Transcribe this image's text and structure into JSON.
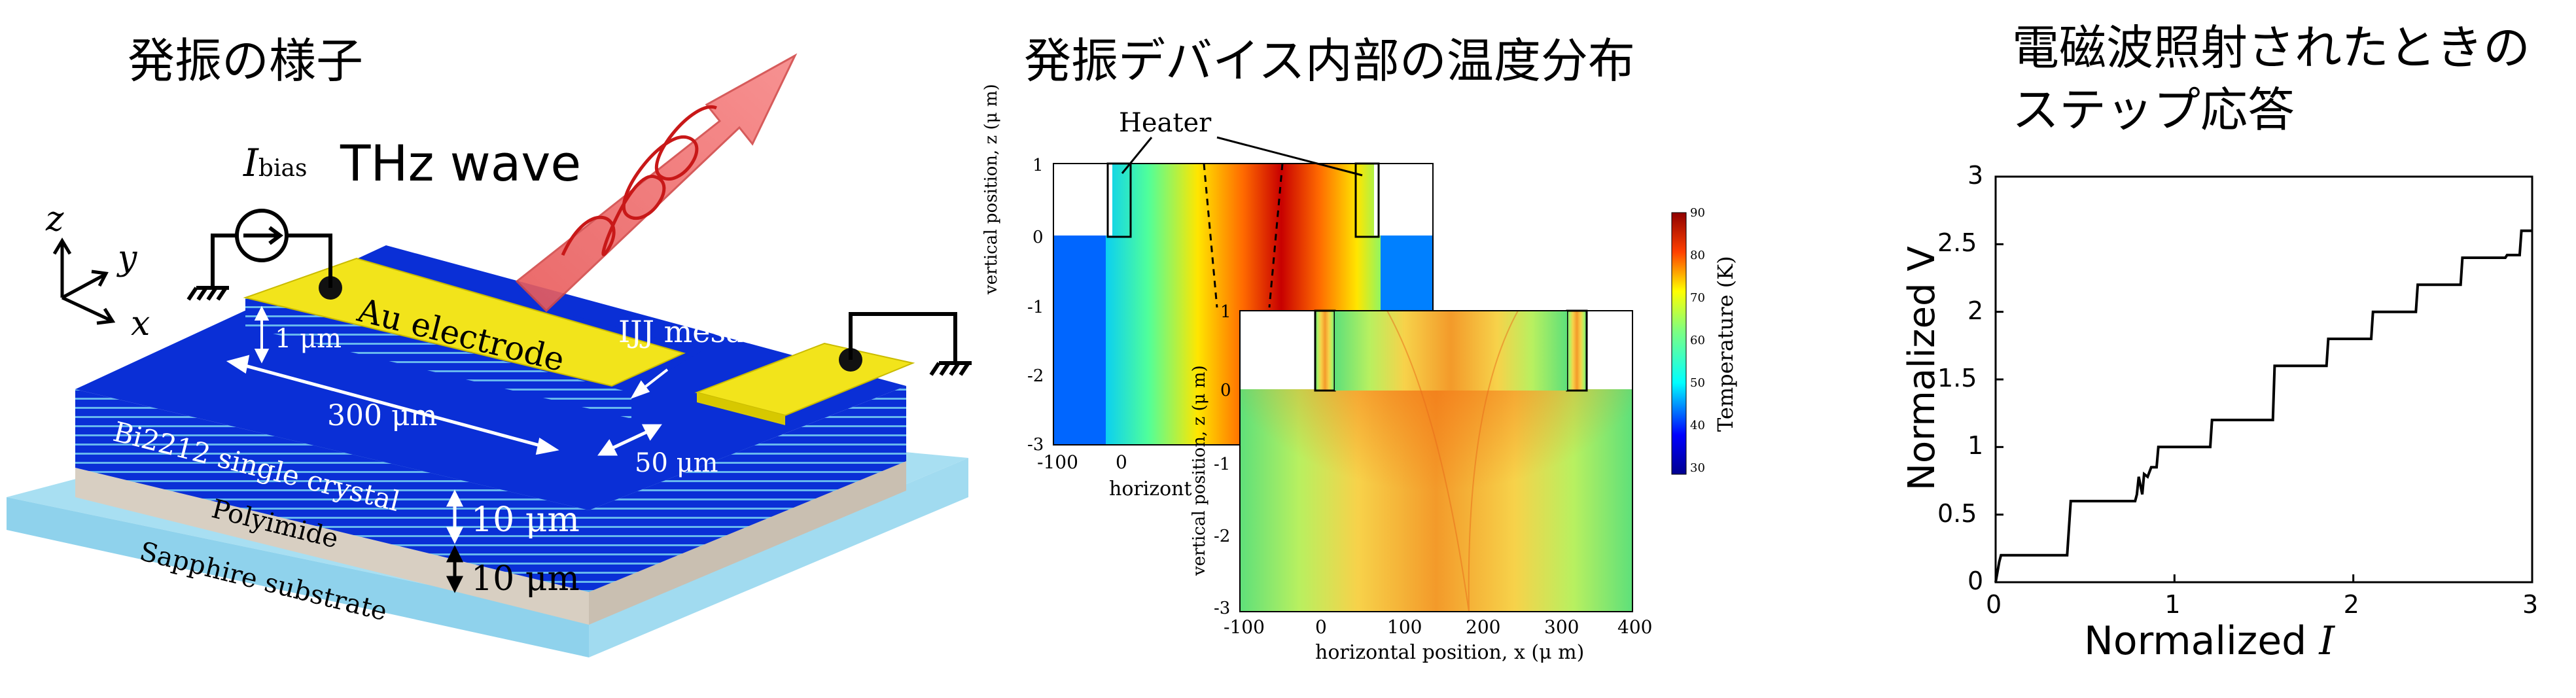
{
  "panel1": {
    "title": "発振の様子",
    "labels": {
      "ibias_main": "I",
      "ibias_sub": "bias",
      "thz": "THz wave",
      "axis_z": "z",
      "axis_y": "y",
      "axis_x": "x",
      "au_electrode": "Au electrode",
      "ijj_mesa": "IJJ mesa",
      "thickness_1um": "1 μm",
      "length_300um": "300 μm",
      "width_50um": "50 μm",
      "bi2212": "Bi2212 single crystal",
      "polyimide": "Polyimide",
      "sapphire": "Sapphire substrate",
      "thick_10um_a": "10 μm",
      "thick_10um_b": "10 μm"
    },
    "colors": {
      "mesa_blue": "#0a2fd6",
      "electrode_yellow": "#f2e41b",
      "substrate": "#a8dff2",
      "polyimide": "#d8cfc2",
      "thz_arrow": "#f07070"
    }
  },
  "panel2": {
    "title": "発振デバイス内部の温度分布",
    "heater_label": "Heater",
    "colorbar": {
      "label": "Temperature (K)",
      "ticks": [
        "90",
        "80",
        "70",
        "60",
        "50",
        "40",
        "30"
      ]
    },
    "back_plot": {
      "ylabel": "vertical position,  z (μ m)",
      "xlabel": "horizont",
      "x_ticks": [
        "-100",
        "0"
      ],
      "y_ticks": [
        "1",
        "0",
        "-1",
        "-2",
        "-3"
      ]
    },
    "front_plot": {
      "ylabel": "vertical position,  z (μ m)",
      "xlabel": "horizontal position,  x (μ m)",
      "x_ticks": [
        "-100",
        "0",
        "100",
        "200",
        "300",
        "400"
      ],
      "y_ticks": [
        "1",
        "0",
        "-1",
        "-2",
        "-3"
      ]
    }
  },
  "panel3": {
    "title_line1": "電磁波照射されたときの",
    "title_line2": "ステップ応答",
    "chart_data": {
      "type": "line",
      "xlabel": "Normalized I",
      "ylabel": "Normalized V",
      "xlim": [
        0,
        3
      ],
      "ylim": [
        0,
        3
      ],
      "x_ticks": [
        "0",
        "1",
        "2",
        "3"
      ],
      "y_ticks": [
        "0",
        "0.5",
        "1",
        "1.5",
        "2",
        "2.5",
        "3"
      ],
      "series": [
        {
          "x": [
            0,
            0.02,
            0.03,
            0.4,
            0.42,
            0.78,
            0.79,
            0.8,
            0.82,
            0.83,
            0.85,
            0.87,
            0.9,
            0.91,
            1.2,
            1.21,
            1.55,
            1.56,
            1.85,
            1.86,
            2.1,
            2.11,
            2.35,
            2.36,
            2.6,
            2.61,
            2.85,
            2.86,
            2.93,
            2.94,
            3.0
          ],
          "y": [
            0,
            0.15,
            0.2,
            0.2,
            0.6,
            0.6,
            0.65,
            0.78,
            0.65,
            0.8,
            0.78,
            0.85,
            0.85,
            1.0,
            1.0,
            1.2,
            1.2,
            1.6,
            1.6,
            1.8,
            1.8,
            2.0,
            2.0,
            2.2,
            2.2,
            2.4,
            2.4,
            2.42,
            2.42,
            2.6,
            2.6
          ]
        }
      ]
    }
  }
}
